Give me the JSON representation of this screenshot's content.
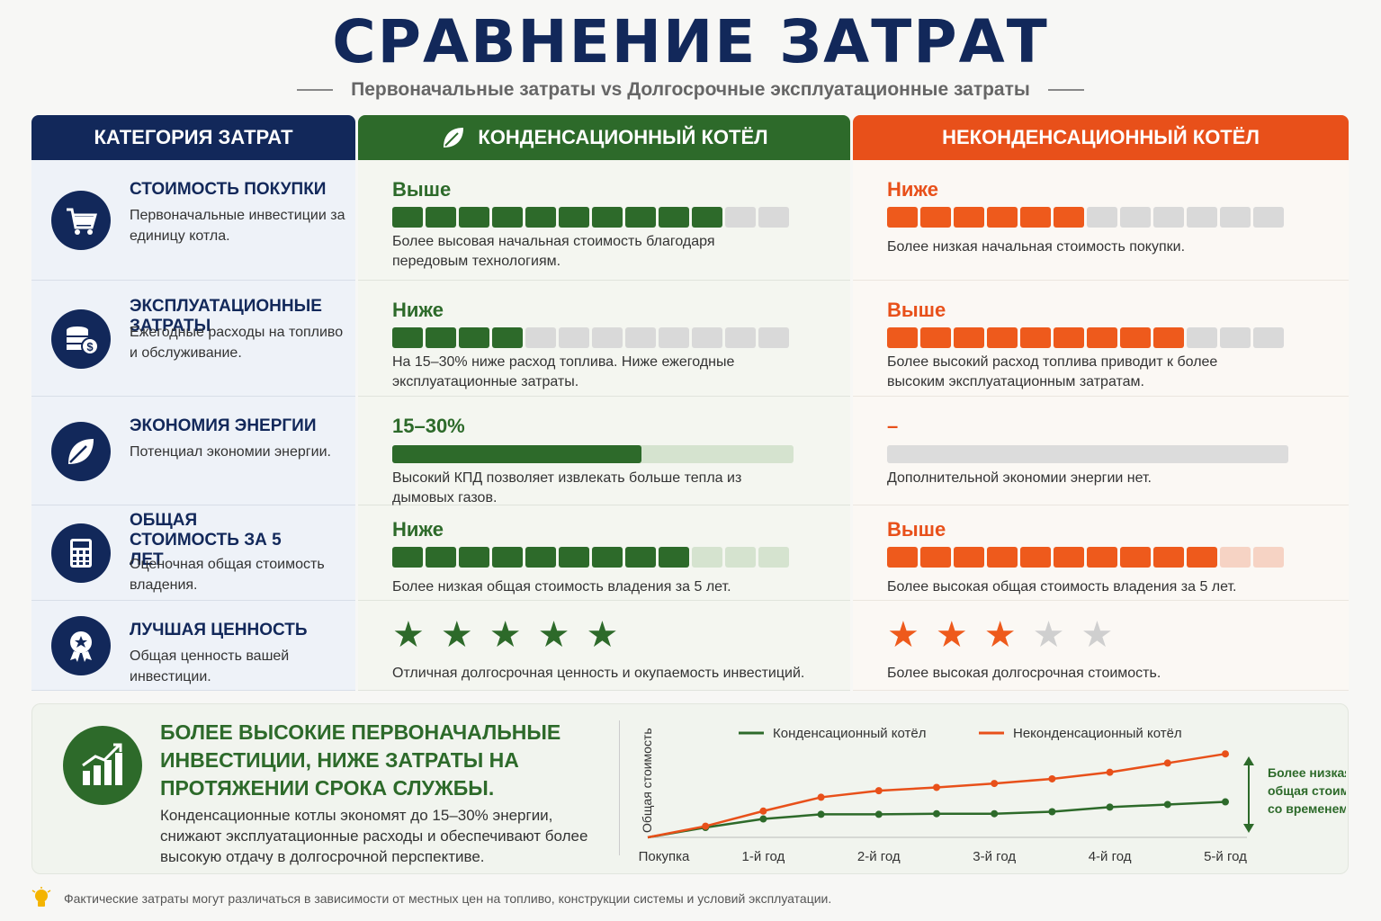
{
  "title": "СРАВНЕНИЕ ЗАТРАТ",
  "subtitle": "Первоначальные затраты vs Долгосрочные эксплуатационные затраты",
  "headers": {
    "category": "КАТЕГОРИЯ ЗАТРАТ",
    "condensing": "КОНДЕНСАЦИОННЫЙ КОТЁЛ",
    "non_condensing": "НЕКОНДЕНСАЦИОННЫЙ КОТЁЛ"
  },
  "colors": {
    "navy": "#12285a",
    "green": "#2d6a2a",
    "orange": "#e8501a",
    "grey": "#d9d9d9"
  },
  "rows": [
    {
      "icon": "cart-icon",
      "title": "СТОИМОСТЬ ПОКУПКИ",
      "desc": "Первоначальные инвестиции за единицу котла.",
      "cond": {
        "level": "Выше",
        "filled": 10,
        "total": 12,
        "note": "Более высовая начальная стоимость благодаря передовым технологиям."
      },
      "non": {
        "level": "Ниже",
        "filled": 6,
        "total": 12,
        "note": "Более низкая начальная стоимость покупки."
      }
    },
    {
      "icon": "coins-icon",
      "title": "ЭКСПЛУАТАЦИОННЫЕ ЗАТРАТЫ",
      "desc": "Ежегодные расходы на топливо и обслуживание.",
      "cond": {
        "level": "Ниже",
        "filled": 4,
        "total": 12,
        "note": "На 15–30% ниже расход топлива. Ниже ежегодные эксплуатационные затраты."
      },
      "non": {
        "level": "Выше",
        "filled": 9,
        "total": 12,
        "note": "Более высокий расход топлива приводит к более высоким эксплуатационным затратам."
      }
    },
    {
      "icon": "leaf-icon",
      "title": "ЭКОНОМИЯ ЭНЕРГИИ",
      "desc": "Потенциал экономии энергии.",
      "cond": {
        "level": "15–30%",
        "fraction": 0.62,
        "note": "Высокий КПД позволяет извлекать больше тепла из дымовых газов."
      },
      "non": {
        "level": "–",
        "fraction": 0,
        "note": "Дополнительной экономии энергии нет."
      }
    },
    {
      "icon": "calculator-icon",
      "title": "ОБЩАЯ СТОИМОСТЬ ЗА 5 ЛЕТ",
      "desc": "Оценочная общая стоимость владения.",
      "cond": {
        "level": "Ниже",
        "filled": 9,
        "total": 12,
        "note": "Более низкая общая стоимость владения за 5 лет."
      },
      "non": {
        "level": "Выше",
        "filled": 10,
        "total": 12,
        "note": "Более высокая общая стоимость владения за 5 лет."
      }
    },
    {
      "icon": "award-icon",
      "title": "ЛУЧШАЯ ЦЕННОСТЬ",
      "desc": "Общая ценность вашей инвестиции.",
      "cond": {
        "stars": 5,
        "of": 5,
        "note": "Отличная долгосрочная ценность и окупаемость инвестиций."
      },
      "non": {
        "stars": 3,
        "of": 5,
        "note": "Более высокая долгосрочная стоимость."
      }
    }
  ],
  "summary": {
    "heading": "БОЛЕЕ ВЫСОКИЕ ПЕРВОНАЧАЛЬНЫЕ ИНВЕСТИЦИИ, НИЖЕ ЗАТРАТЫ НА ПРОТЯЖЕНИИ СРОКА СЛУЖБЫ.",
    "text": "Конденсационные котлы экономят до 15–30% энергии, снижают эксплуатационные расходы и обеспечивают более высокую отдачу в долгосрочной перспективе."
  },
  "chart_data": {
    "type": "line",
    "ylabel": "Общая стоимость",
    "x_ticks": [
      "Покупка",
      "1-й год",
      "2-й год",
      "3-й год",
      "4-й год",
      "5-й год"
    ],
    "series": [
      {
        "name": "Конденсационный котёл",
        "color": "#2d6a2a",
        "values": [
          0,
          1.5,
          2.8,
          3.5,
          3.5,
          3.6,
          3.6,
          3.9,
          4.6,
          5.0,
          5.4
        ]
      },
      {
        "name": "Неконденсационный котёл",
        "color": "#e8501a",
        "values": [
          0,
          1.7,
          4.0,
          6.1,
          7.1,
          7.6,
          8.2,
          8.9,
          9.9,
          11.3,
          12.7
        ]
      }
    ],
    "annotation": "Более низкая общая стоимость со временем"
  },
  "footnote": "Фактические затраты могут различаться в зависимости от местных цен на топливо, конструкции системы и условий эксплуатации."
}
